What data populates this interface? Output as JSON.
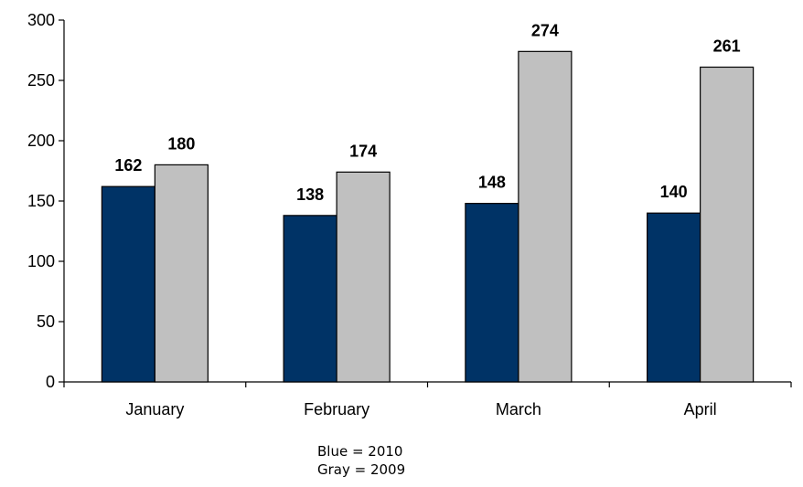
{
  "chart_data": {
    "type": "bar",
    "categories": [
      "January",
      "February",
      "March",
      "April"
    ],
    "series": [
      {
        "name": "2010",
        "color": "#003366",
        "values": [
          162,
          138,
          148,
          140
        ]
      },
      {
        "name": "2009",
        "color": "#c0c0c0",
        "values": [
          180,
          174,
          274,
          261
        ]
      }
    ],
    "title": "",
    "xlabel": "",
    "ylabel": "",
    "ylim": [
      0,
      300
    ],
    "yticks": [
      0,
      50,
      100,
      150,
      200,
      250,
      300
    ],
    "grid": false,
    "data_labels": true
  },
  "legend_notes": {
    "blue": "Blue = 2010",
    "gray": "Gray = 2009"
  }
}
